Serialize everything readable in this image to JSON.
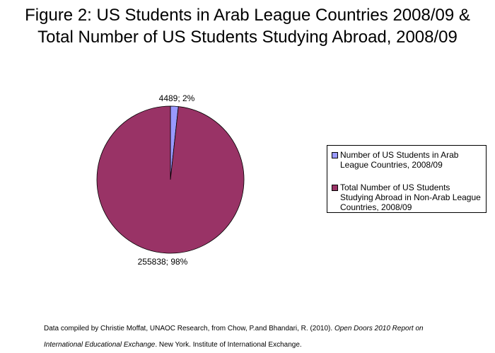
{
  "title": {
    "line1": "Figure 2: US Students in Arab League Countries 2008/09 &",
    "line2": "Total Number of US Students Studying Abroad, 2008/09"
  },
  "chart_data": {
    "type": "pie",
    "title": "Figure 2: US Students in Arab League Countries 2008/09 & Total Number of US Students Studying Abroad, 2008/09",
    "slices": [
      {
        "name": "Number of US Students in Arab League Countries, 2008/09",
        "value": 4489,
        "percent": 2,
        "label": "4489; 2%",
        "color": "#9999ff"
      },
      {
        "name": "Total Number of US Students Studying Abroad in Non-Arab League Countries, 2008/09",
        "value": 255838,
        "percent": 98,
        "label": "255838; 98%",
        "color": "#993366"
      }
    ],
    "legend_position": "right"
  },
  "legend": {
    "items": [
      {
        "label": "Number of US Students in Arab League Countries, 2008/09",
        "color": "#9999ff"
      },
      {
        "label": "Total Number of US Students Studying Abroad in Non-Arab League Countries, 2008/09",
        "color": "#993366"
      }
    ]
  },
  "source": {
    "line1_plain": "Data compiled by Christie Moffat, UNAOC Research, from Chow, P.and Bhandari, R. (2010). ",
    "line1_italic": "Open Doors 2010 Report on",
    "line2_italic": "International Educational Exchange",
    "line2_plain": ". New York. Institute of International Exchange."
  }
}
